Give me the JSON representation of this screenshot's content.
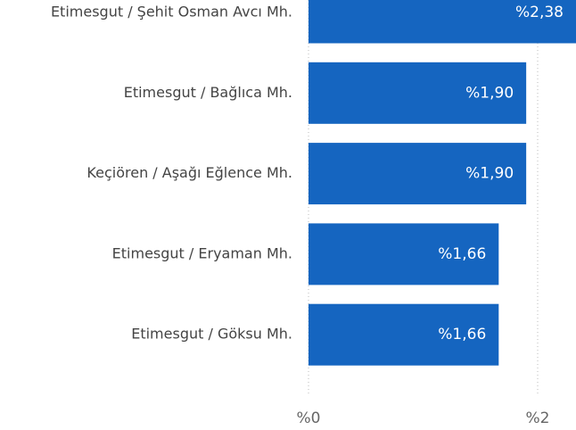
{
  "chart_data": {
    "type": "bar",
    "orientation": "horizontal",
    "categories": [
      "Etimesgut / Şehit Osman Avcı Mh.",
      "Etimesgut / Bağlıca Mh.",
      "Keçiören / Aşağı Eğlence Mh.",
      "Etimesgut / Eryaman Mh.",
      "Etimesgut / Göksu Mh."
    ],
    "values": [
      2.38,
      1.9,
      1.9,
      1.66,
      1.66
    ],
    "value_labels": [
      "%2,38",
      "%1,90",
      "%1,90",
      "%1,66",
      "%1,66"
    ],
    "color": "#1565c0",
    "xlim": [
      0,
      2.5
    ],
    "xticks": [
      {
        "value": 0,
        "label": "%0"
      },
      {
        "value": 2,
        "label": "%2"
      }
    ],
    "grid": true
  }
}
